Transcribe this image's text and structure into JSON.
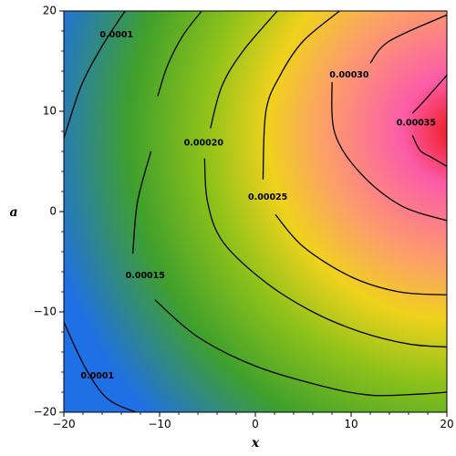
{
  "chart_data": {
    "type": "heatmap",
    "subtype": "contour-density",
    "xlabel": "x",
    "ylabel": "a",
    "xlim": [
      -20,
      20
    ],
    "ylim": [
      -20,
      20
    ],
    "x_ticks": [
      -20,
      -10,
      0,
      10,
      20
    ],
    "y_ticks": [
      -20,
      -10,
      0,
      10,
      20
    ],
    "x_tick_labels": [
      "−20",
      "−10",
      "0",
      "10",
      "20"
    ],
    "y_tick_labels": [
      "−20",
      "−10",
      "0",
      "10",
      "20"
    ],
    "grid": false,
    "legend": "none",
    "colormap": [
      "#1f6fe5",
      "#3fa02c",
      "#8fc21a",
      "#f0d21c",
      "#fca068",
      "#fc5ca8",
      "#ee1515"
    ],
    "contour_levels": [
      {
        "level": 0.0001,
        "labels": [
          {
            "text": "0.0001",
            "x": -14.5,
            "y": 17.6
          },
          {
            "text": "0.0001",
            "x": -16.5,
            "y": -16.4
          }
        ],
        "paths": [
          [
            [
              -13.6,
              20
            ],
            [
              -16,
              16.5
            ],
            [
              -18.2,
              12.5
            ],
            [
              -20,
              7.3
            ]
          ],
          [
            [
              -20,
              -11
            ],
            [
              -17.8,
              -15.5
            ],
            [
              -15.5,
              -18.6
            ],
            [
              -12.5,
              -20
            ]
          ]
        ]
      },
      {
        "level": 0.00015,
        "labels": [
          {
            "text": "0.00015",
            "x": -11.5,
            "y": -6.4
          }
        ],
        "paths": [
          [
            [
              -5.6,
              20
            ],
            [
              -7.6,
              17.5
            ],
            [
              -9.2,
              14.5
            ],
            [
              -10.2,
              11.5
            ]
          ],
          [
            [
              -10.9,
              6
            ],
            [
              -12.3,
              1
            ],
            [
              -12.8,
              -4.2
            ]
          ],
          [
            [
              -10.5,
              -8.8
            ],
            [
              -6,
              -12.5
            ],
            [
              0,
              -15.4
            ],
            [
              7,
              -17.4
            ],
            [
              12,
              -18.3
            ],
            [
              17,
              -18.2
            ],
            [
              20,
              -18
            ]
          ]
        ]
      },
      {
        "level": 0.0002,
        "labels": [
          {
            "text": "0.00020",
            "x": -5.4,
            "y": 6.8
          }
        ],
        "paths": [
          [
            [
              2.3,
              20
            ],
            [
              -1.3,
              16
            ],
            [
              -3.5,
              12.5
            ],
            [
              -4.7,
              8.3
            ]
          ],
          [
            [
              -5.3,
              5.3
            ],
            [
              -5,
              1
            ],
            [
              -3.4,
              -3
            ],
            [
              1,
              -7
            ],
            [
              6,
              -10
            ],
            [
              11,
              -12
            ],
            [
              16,
              -13.2
            ],
            [
              20,
              -13.5
            ]
          ]
        ]
      },
      {
        "level": 0.00025,
        "labels": [
          {
            "text": "0.00025",
            "x": 1.3,
            "y": 1.4
          }
        ],
        "paths": [
          [
            [
              8.8,
              20
            ],
            [
              5,
              17
            ],
            [
              2.6,
              13.6
            ],
            [
              1.1,
              10
            ],
            [
              0.8,
              3.2
            ]
          ],
          [
            [
              2.1,
              -0.3
            ],
            [
              5,
              -3.5
            ],
            [
              10,
              -6.5
            ],
            [
              15,
              -8
            ],
            [
              20,
              -8.3
            ]
          ]
        ]
      },
      {
        "level": 0.0003,
        "labels": [
          {
            "text": "0.00030",
            "x": 9.8,
            "y": 13.6
          }
        ],
        "paths": [
          [
            [
              20,
              19.6
            ],
            [
              14,
              17
            ],
            [
              12,
              14.8
            ]
          ],
          [
            [
              8,
              12.9
            ],
            [
              8.3,
              7.8
            ],
            [
              11,
              3.8
            ],
            [
              15.2,
              0.6
            ],
            [
              20,
              -0.9
            ]
          ]
        ]
      },
      {
        "level": 0.00035,
        "labels": [
          {
            "text": "0.00035",
            "x": 16.8,
            "y": 8.8
          }
        ],
        "paths": [
          [
            [
              20,
              13.6
            ],
            [
              17.6,
              11
            ],
            [
              16.4,
              9.8
            ]
          ],
          [
            [
              16.4,
              7.6
            ],
            [
              17.2,
              6.1
            ],
            [
              18.4,
              5.4
            ],
            [
              20,
              4.5
            ]
          ]
        ]
      }
    ],
    "density_peak": {
      "x": 21,
      "y": 8
    }
  }
}
